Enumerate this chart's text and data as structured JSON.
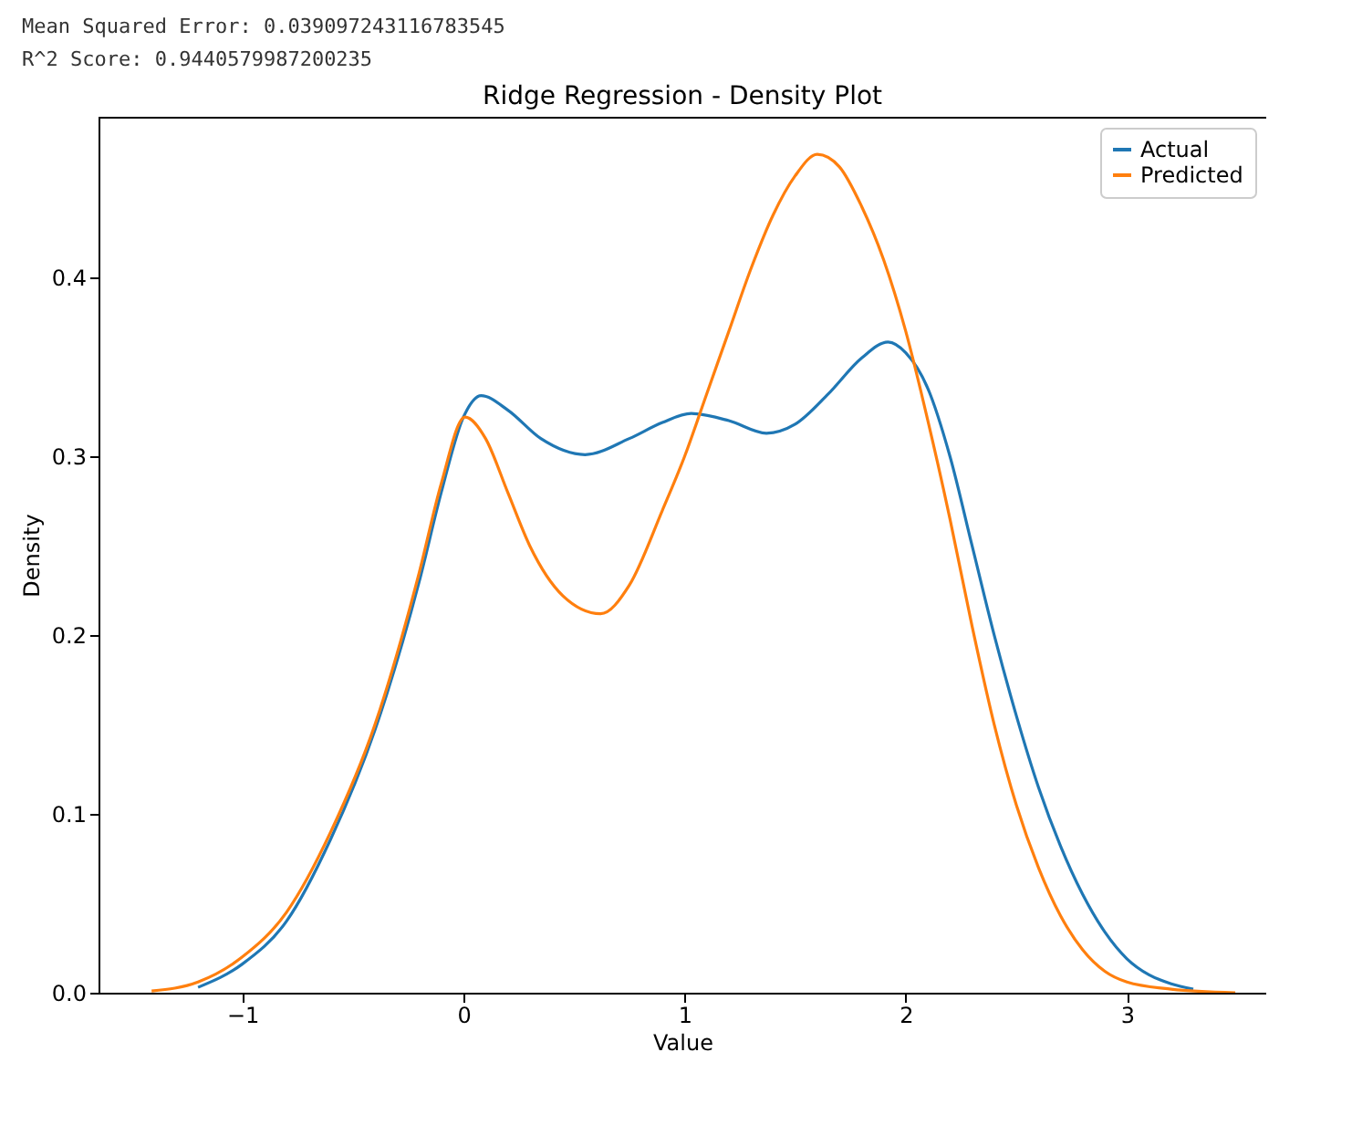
{
  "chart_data": {
    "type": "line",
    "title": "Ridge Regression - Density Plot",
    "xlabel": "Value",
    "ylabel": "Density",
    "annotations": [
      "Mean Squared Error: 0.039097243116783545",
      "R^2 Score: 0.9440579987200235"
    ],
    "xlim": [
      -1.65,
      3.63
    ],
    "ylim": [
      0,
      0.49
    ],
    "xticks": [
      {
        "value": -1,
        "label": "−1"
      },
      0,
      1,
      2,
      3
    ],
    "yticks": [
      {
        "value": 0,
        "label": "0.0"
      },
      0.1,
      0.2,
      0.3,
      0.4
    ],
    "legend": "top right",
    "grid": false,
    "series": [
      {
        "name": "Actual",
        "color": "#1f77b4",
        "x": [
          -1.2,
          -1.0,
          -0.8,
          -0.6,
          -0.4,
          -0.2,
          -0.1,
          0.0,
          0.08,
          0.2,
          0.35,
          0.55,
          0.75,
          0.9,
          1.03,
          1.2,
          1.37,
          1.5,
          1.65,
          1.8,
          1.92,
          2.0,
          2.1,
          2.2,
          2.3,
          2.4,
          2.5,
          2.6,
          2.7,
          2.8,
          2.9,
          3.0,
          3.1,
          3.2,
          3.3
        ],
        "values": [
          0.003,
          0.016,
          0.04,
          0.086,
          0.147,
          0.23,
          0.28,
          0.322,
          0.334,
          0.326,
          0.31,
          0.301,
          0.31,
          0.319,
          0.324,
          0.32,
          0.313,
          0.318,
          0.335,
          0.355,
          0.364,
          0.358,
          0.338,
          0.3,
          0.25,
          0.2,
          0.155,
          0.115,
          0.082,
          0.055,
          0.034,
          0.019,
          0.01,
          0.005,
          0.002
        ]
      },
      {
        "name": "Predicted",
        "color": "#ff7f0e",
        "x": [
          -1.41,
          -1.2,
          -1.0,
          -0.8,
          -0.6,
          -0.4,
          -0.2,
          -0.1,
          0.007,
          0.1,
          0.2,
          0.3,
          0.45,
          0.62,
          0.75,
          0.9,
          1.0,
          1.1,
          1.2,
          1.3,
          1.4,
          1.5,
          1.6,
          1.7,
          1.8,
          1.9,
          2.0,
          2.1,
          2.2,
          2.3,
          2.4,
          2.5,
          2.6,
          2.7,
          2.8,
          2.9,
          3.0,
          3.2,
          3.49
        ],
        "values": [
          0.001,
          0.006,
          0.02,
          0.045,
          0.09,
          0.15,
          0.235,
          0.285,
          0.322,
          0.31,
          0.28,
          0.25,
          0.222,
          0.212,
          0.228,
          0.27,
          0.3,
          0.335,
          0.37,
          0.405,
          0.435,
          0.457,
          0.469,
          0.462,
          0.44,
          0.41,
          0.37,
          0.32,
          0.265,
          0.205,
          0.15,
          0.105,
          0.07,
          0.043,
          0.024,
          0.012,
          0.006,
          0.002,
          0.0
        ]
      }
    ]
  }
}
